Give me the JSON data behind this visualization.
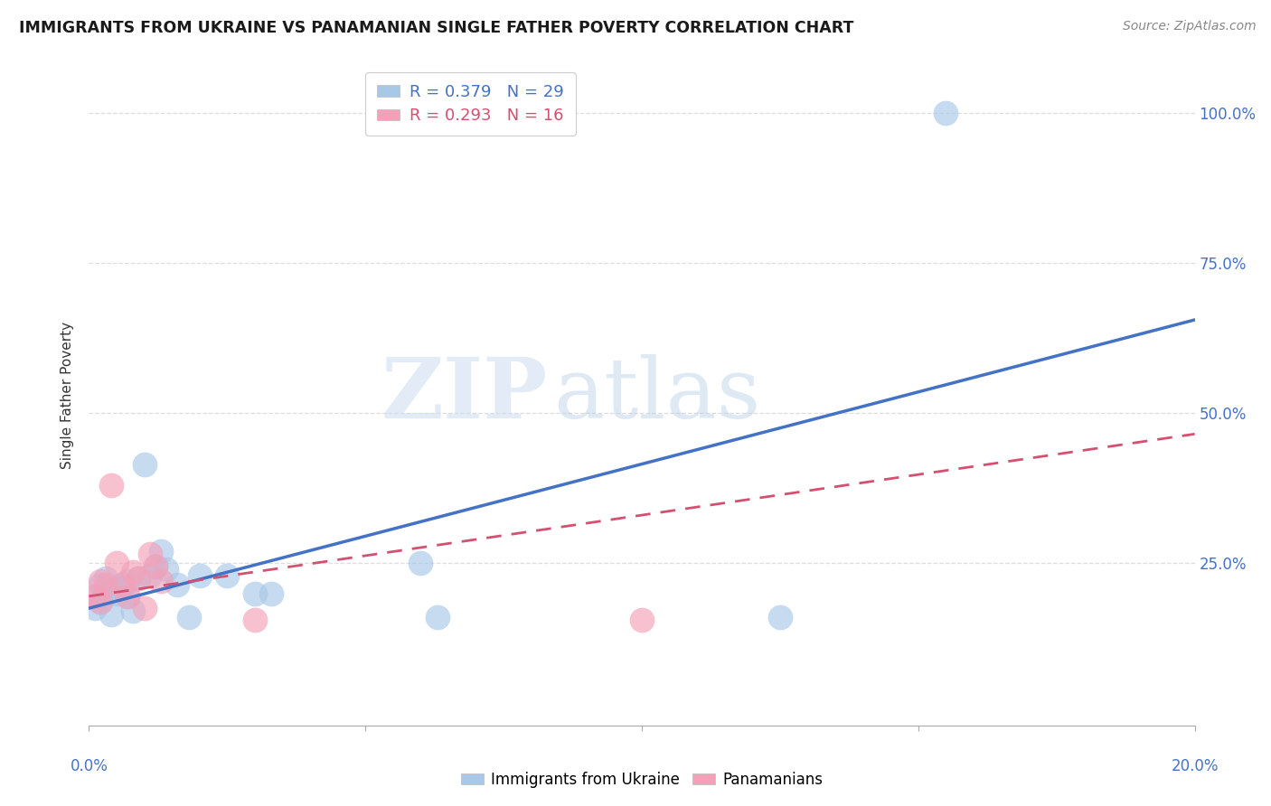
{
  "title": "IMMIGRANTS FROM UKRAINE VS PANAMANIAN SINGLE FATHER POVERTY CORRELATION CHART",
  "source": "Source: ZipAtlas.com",
  "ylabel": "Single Father Poverty",
  "ytick_labels": [
    "100.0%",
    "75.0%",
    "50.0%",
    "25.0%"
  ],
  "ytick_values": [
    1.0,
    0.75,
    0.5,
    0.25
  ],
  "xlim": [
    0.0,
    0.2
  ],
  "ylim": [
    -0.02,
    1.08
  ],
  "ukraine_R": 0.379,
  "ukraine_N": 29,
  "panama_R": 0.293,
  "panama_N": 16,
  "ukraine_color": "#a8c8e8",
  "ukraine_line_color": "#4472c4",
  "panama_color": "#f4a0b8",
  "panama_line_color": "#d45070",
  "ukraine_line_x0": 0.0,
  "ukraine_line_y0": 0.175,
  "ukraine_line_x1": 0.2,
  "ukraine_line_y1": 0.655,
  "panama_line_x0": 0.0,
  "panama_line_y0": 0.195,
  "panama_line_x1": 0.2,
  "panama_line_y1": 0.465,
  "ukraine_points_x": [
    0.001,
    0.001,
    0.002,
    0.002,
    0.003,
    0.003,
    0.004,
    0.005,
    0.005,
    0.006,
    0.007,
    0.007,
    0.008,
    0.009,
    0.01,
    0.011,
    0.012,
    0.013,
    0.014,
    0.016,
    0.018,
    0.02,
    0.025,
    0.03,
    0.033,
    0.06,
    0.063,
    0.125,
    0.155
  ],
  "ukraine_points_y": [
    0.195,
    0.175,
    0.215,
    0.185,
    0.225,
    0.2,
    0.165,
    0.21,
    0.2,
    0.21,
    0.195,
    0.22,
    0.17,
    0.225,
    0.415,
    0.23,
    0.245,
    0.27,
    0.24,
    0.215,
    0.16,
    0.23,
    0.23,
    0.2,
    0.2,
    0.25,
    0.16,
    0.16,
    1.0
  ],
  "panama_points_x": [
    0.001,
    0.002,
    0.002,
    0.003,
    0.004,
    0.005,
    0.006,
    0.007,
    0.008,
    0.009,
    0.01,
    0.011,
    0.012,
    0.013,
    0.03,
    0.1
  ],
  "panama_points_y": [
    0.195,
    0.22,
    0.185,
    0.215,
    0.38,
    0.25,
    0.215,
    0.195,
    0.235,
    0.225,
    0.175,
    0.265,
    0.245,
    0.22,
    0.155,
    0.155
  ],
  "watermark_zip": "ZIP",
  "watermark_atlas": "atlas",
  "grid_color": "#dddddd"
}
